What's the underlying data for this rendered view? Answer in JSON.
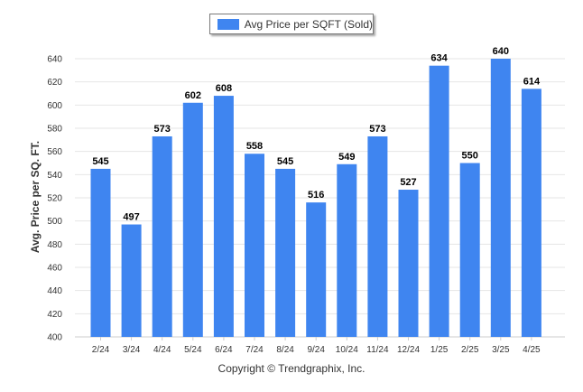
{
  "chart_data": {
    "type": "bar",
    "categories": [
      "2/24",
      "3/24",
      "4/24",
      "5/24",
      "6/24",
      "7/24",
      "8/24",
      "9/24",
      "10/24",
      "11/24",
      "12/24",
      "1/25",
      "2/25",
      "3/25",
      "4/25"
    ],
    "series": [
      {
        "name": "Avg Price per SQFT (Sold)",
        "values": [
          545,
          497,
          573,
          602,
          608,
          558,
          545,
          516,
          549,
          573,
          527,
          634,
          550,
          640,
          614
        ]
      }
    ],
    "xlabel": "",
    "ylabel": "Avg. Price per SQ. FT.",
    "ylim": [
      400,
      640
    ],
    "yticks": [
      400,
      420,
      440,
      460,
      480,
      500,
      520,
      540,
      560,
      580,
      600,
      620,
      640
    ],
    "grid": true,
    "legend_position": "top-center",
    "data_labels": true
  },
  "colors": {
    "bar": "#3f85f0",
    "grid": "#e6e6e6",
    "axis": "#cccccc",
    "text": "#333333",
    "label": "#000000"
  },
  "footer": {
    "copyright": "Copyright © Trendgraphix, Inc."
  }
}
